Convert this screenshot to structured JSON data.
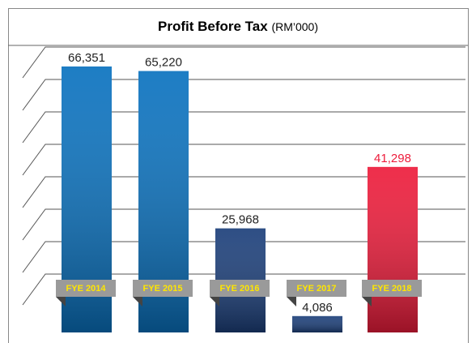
{
  "chart_data": {
    "type": "bar",
    "title": "Profit Before Tax",
    "unit": "(RM’000)",
    "categories": [
      "FYE 2014",
      "FYE 2015",
      "FYE 2016",
      "FYE 2017",
      "FYE 2018"
    ],
    "values": [
      66351,
      65220,
      25968,
      4086,
      41298
    ],
    "value_labels": [
      "66,351",
      "65,220",
      "25,968",
      "4,086",
      "41,298"
    ],
    "colors": [
      "#0a72bf",
      "#0a72bf",
      "#1c3f7a",
      "#1c3f7a",
      "#ed1c3b"
    ],
    "label_colors": [
      "#222222",
      "#222222",
      "#222222",
      "#222222",
      "#ed1c3b"
    ]
  }
}
